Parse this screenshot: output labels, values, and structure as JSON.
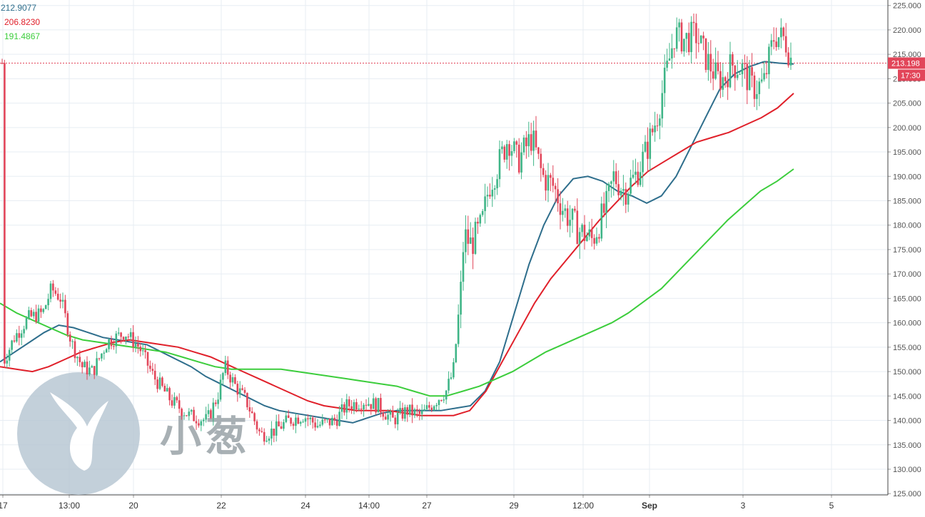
{
  "chart_data": {
    "type": "candlestick",
    "ma_labels": [
      {
        "name": "MA-blue",
        "value": "212.9077",
        "color": "#2e6e8c"
      },
      {
        "name": "MA-red",
        "value": "206.8230",
        "color": "#e0202a"
      },
      {
        "name": "MA-green",
        "value": "191.4867",
        "color": "#3ccd3c"
      }
    ],
    "y_ticks": [
      "225.000",
      "220.000",
      "215.000",
      "210.000",
      "205.000",
      "200.000",
      "195.000",
      "190.000",
      "185.000",
      "180.000",
      "175.000",
      "170.000",
      "165.000",
      "160.000",
      "155.000",
      "150.000",
      "145.000",
      "140.000",
      "135.000",
      "130.000",
      "125.000"
    ],
    "x_ticks": [
      {
        "label": "17",
        "bold": false
      },
      {
        "label": "13:00",
        "bold": false
      },
      {
        "label": "20",
        "bold": false
      },
      {
        "label": "22",
        "bold": false
      },
      {
        "label": "24",
        "bold": false
      },
      {
        "label": "14:00",
        "bold": false
      },
      {
        "label": "27",
        "bold": false
      },
      {
        "label": "29",
        "bold": false
      },
      {
        "label": "12:00",
        "bold": false
      },
      {
        "label": "Sep",
        "bold": true
      },
      {
        "label": "3",
        "bold": false
      },
      {
        "label": "5",
        "bold": false
      }
    ],
    "last_price": "213.198",
    "countdown": "17:30",
    "ylim": [
      124.5,
      225.5
    ],
    "grid": true,
    "colors": {
      "up": "#3fb587",
      "down": "#e2465a",
      "grid": "#e7edf3",
      "axis": "#555555",
      "price_line": "#e2465a"
    },
    "ma_series": [
      {
        "name": "MA-blue",
        "color": "#2e6e8c",
        "y": [
          152,
          154,
          156,
          158,
          159.5,
          159,
          158,
          157,
          156.5,
          156,
          155.5,
          154,
          152.5,
          151,
          149,
          147.5,
          146,
          144.5,
          143,
          142,
          141.5,
          141,
          140.5,
          140,
          139.5,
          140.5,
          141.5,
          142,
          142,
          142,
          142,
          142.5,
          143,
          146,
          152,
          162,
          172,
          180,
          186,
          189.5,
          190,
          189,
          187,
          186,
          184.5,
          186,
          190,
          196,
          202,
          208,
          211,
          212.5,
          213.5,
          213.2,
          213
        ]
      },
      {
        "name": "MA-red",
        "color": "#e0202a",
        "y": [
          151,
          150.5,
          150,
          151,
          152.5,
          154,
          155,
          156,
          156.5,
          156,
          155.5,
          155,
          154,
          153,
          151.5,
          150,
          148.5,
          147,
          145.5,
          144,
          143,
          142.5,
          142,
          142,
          142,
          141.5,
          141,
          141,
          141,
          142,
          146,
          152,
          158,
          164,
          169,
          173,
          177,
          181,
          184.5,
          188,
          191,
          193,
          195,
          197,
          198,
          199,
          200.5,
          202,
          204,
          207
        ]
      },
      {
        "name": "MA-green",
        "color": "#3ccd3c",
        "y": [
          164,
          162,
          160.5,
          159,
          157.5,
          156.5,
          156,
          155.5,
          155,
          154.5,
          154,
          153,
          152,
          151,
          150.5,
          150.5,
          150.5,
          150.5,
          150,
          149.5,
          149,
          148.5,
          148,
          147.5,
          147,
          146,
          145,
          145,
          146,
          147,
          148.5,
          150,
          152,
          154,
          155.5,
          157,
          158.5,
          160,
          162,
          164.5,
          167,
          170.5,
          174,
          177.5,
          181,
          184,
          187,
          189,
          191.5
        ]
      }
    ]
  },
  "watermark": {
    "text": "小葱"
  }
}
